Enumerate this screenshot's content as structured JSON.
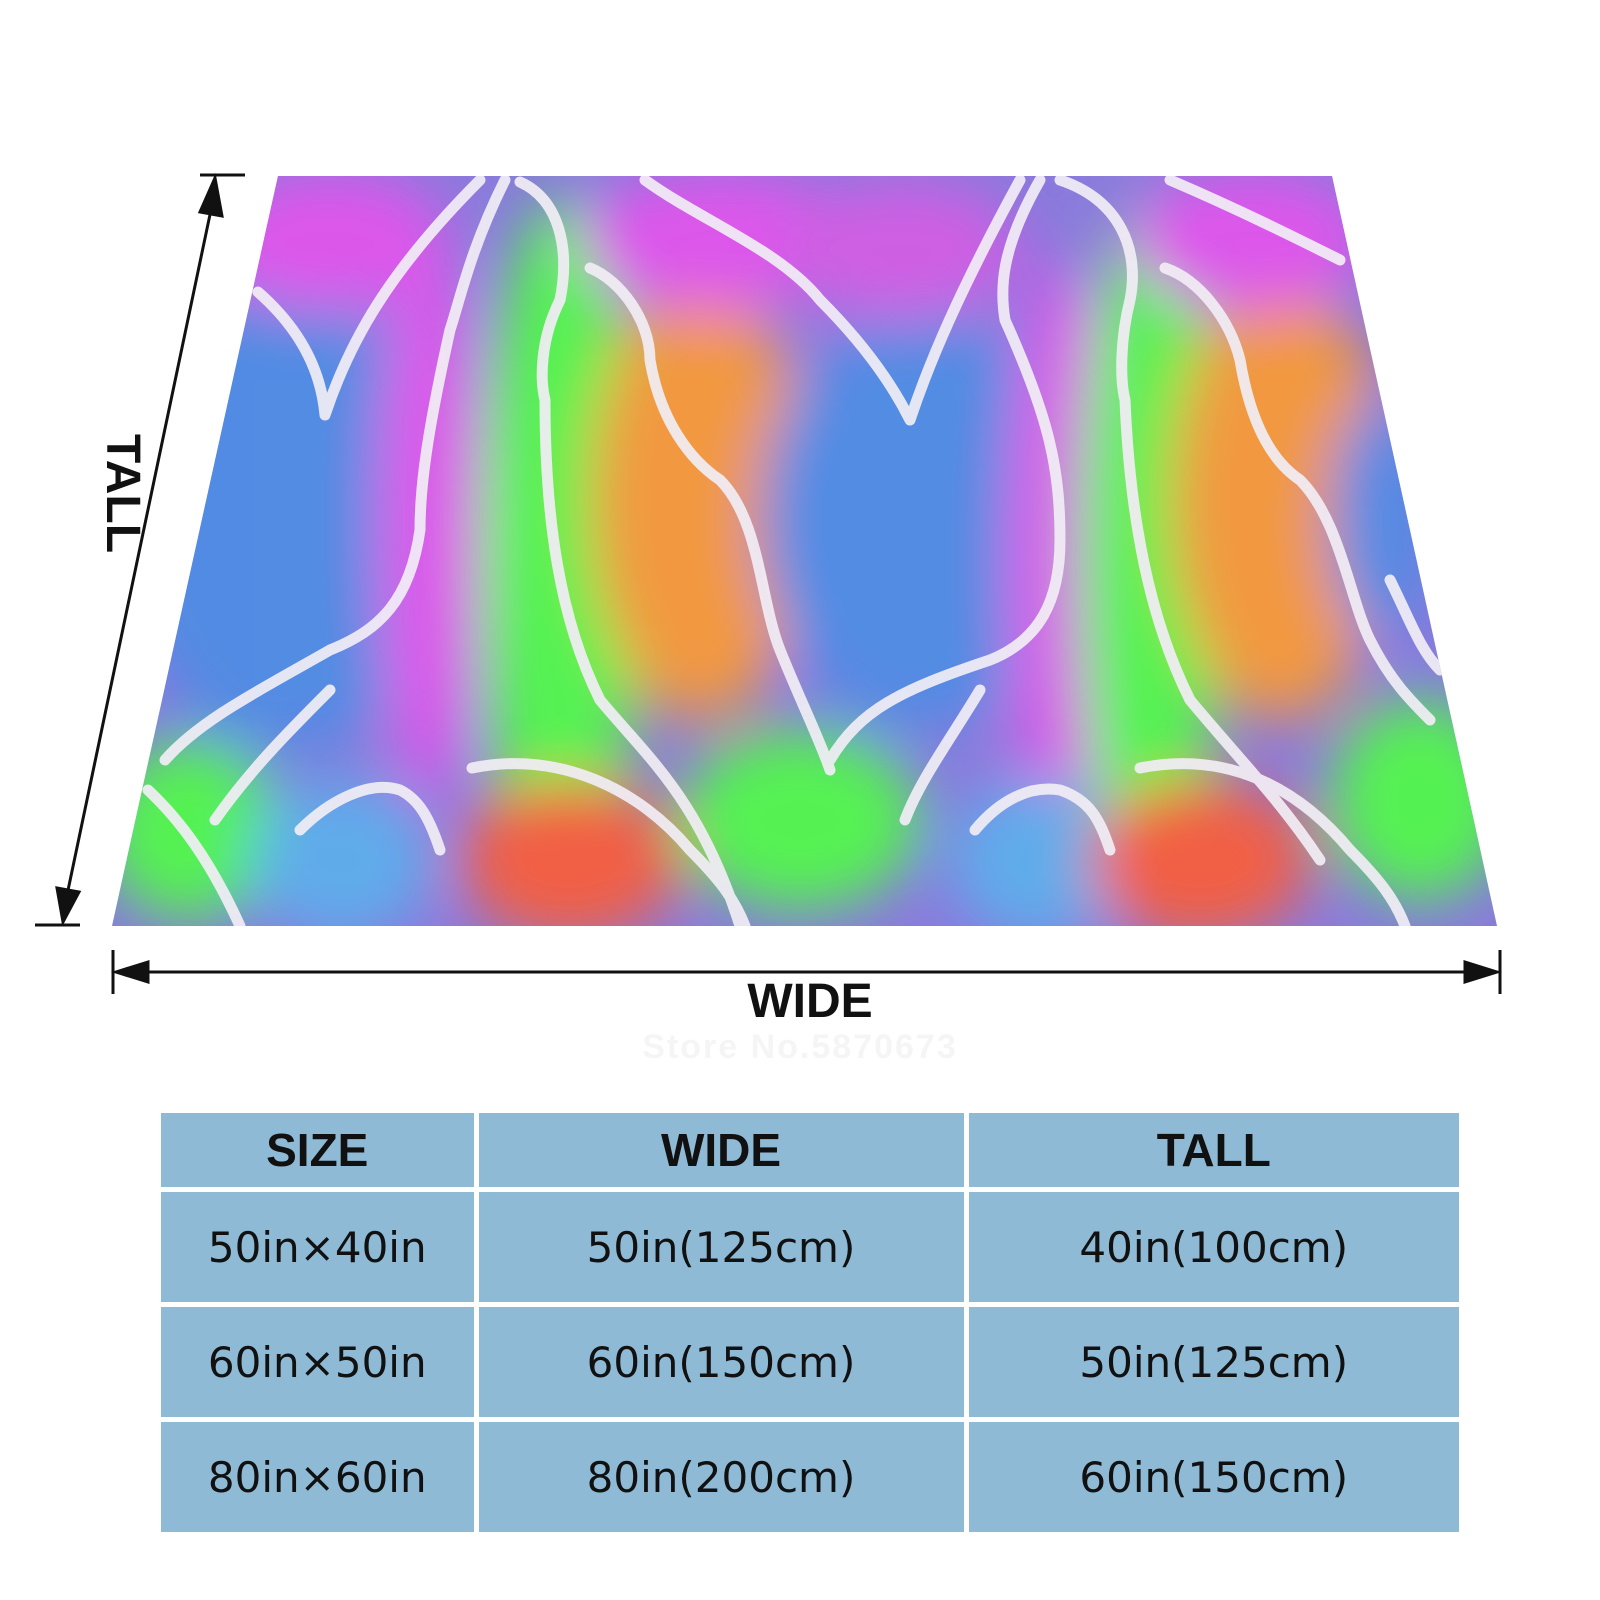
{
  "dimension_labels": {
    "wide": "WIDE",
    "tall": "TALL"
  },
  "watermark": "Store No.5870673",
  "size_table": {
    "headers": [
      "SIZE",
      "WIDE",
      "TALL"
    ],
    "rows": [
      [
        "50in×40in",
        "50in(125cm)",
        "40in(100cm)"
      ],
      [
        "60in×50in",
        "60in(150cm)",
        "50in(125cm)"
      ],
      [
        "80in×60in",
        "80in(200cm)",
        "60in(150cm)"
      ]
    ]
  },
  "colors": {
    "table_cell": "#8fbad6",
    "pattern_blue": "#3a7be0",
    "pattern_green": "#3ef03a",
    "pattern_orange": "#f08a28",
    "pattern_magenta": "#d840e8",
    "pattern_red": "#f04a2a"
  }
}
